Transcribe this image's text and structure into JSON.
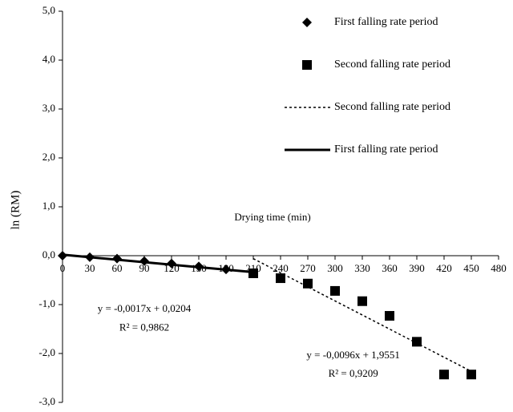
{
  "chart_data": {
    "type": "scatter",
    "x_label": "Drying time (min)",
    "y_label": "ln (RM)",
    "xlim": [
      0,
      480
    ],
    "xticks": [
      0,
      30,
      60,
      90,
      120,
      150,
      180,
      210,
      240,
      270,
      300,
      330,
      360,
      390,
      420,
      450,
      480
    ],
    "ylim": [
      -3,
      5
    ],
    "yticks": [
      {
        "value": -3,
        "label": "-3,0"
      },
      {
        "value": -2,
        "label": "-2,0"
      },
      {
        "value": -1,
        "label": "-1,0"
      },
      {
        "value": 0,
        "label": "0,0"
      },
      {
        "value": 1,
        "label": "1,0"
      },
      {
        "value": 2,
        "label": "2,0"
      },
      {
        "value": 3,
        "label": "3,0"
      },
      {
        "value": 4,
        "label": "4,0"
      },
      {
        "value": 5,
        "label": "5,0"
      }
    ],
    "legend_position": "upper right",
    "series": [
      {
        "name": "First falling rate period",
        "marker": "diamond",
        "color": "#000000",
        "x": [
          0,
          30,
          60,
          90,
          120,
          150,
          180
        ],
        "values": [
          0,
          -0.03,
          -0.06,
          -0.11,
          -0.16,
          -0.22,
          -0.28
        ]
      },
      {
        "name": "Second falling rate period",
        "marker": "square",
        "color": "#000000",
        "x": [
          210,
          240,
          270,
          300,
          330,
          360,
          390,
          420,
          450
        ],
        "values": [
          -0.36,
          -0.46,
          -0.57,
          -0.72,
          -0.93,
          -1.23,
          -1.76,
          -2.43,
          -2.43
        ]
      },
      {
        "name": "Second falling rate period",
        "marker": "dotted",
        "color": "#000000",
        "x": [
          210,
          450
        ],
        "values": [
          -0.0609,
          -2.3649
        ]
      },
      {
        "name": "First falling rate period",
        "marker": "solid",
        "color": "#000000",
        "x": [
          0,
          210
        ],
        "values": [
          0.0204,
          -0.3366
        ]
      }
    ],
    "annotations": [
      {
        "text": "y = -0,0017x + 0,0204",
        "x": 90,
        "y": -1.1
      },
      {
        "text": "R² = 0,9862",
        "x": 90,
        "y": -1.48
      },
      {
        "text": "y = -0,0096x + 1,9551",
        "x": 320,
        "y": -2.05
      },
      {
        "text": "R² = 0,9209",
        "x": 320,
        "y": -2.43
      }
    ]
  }
}
